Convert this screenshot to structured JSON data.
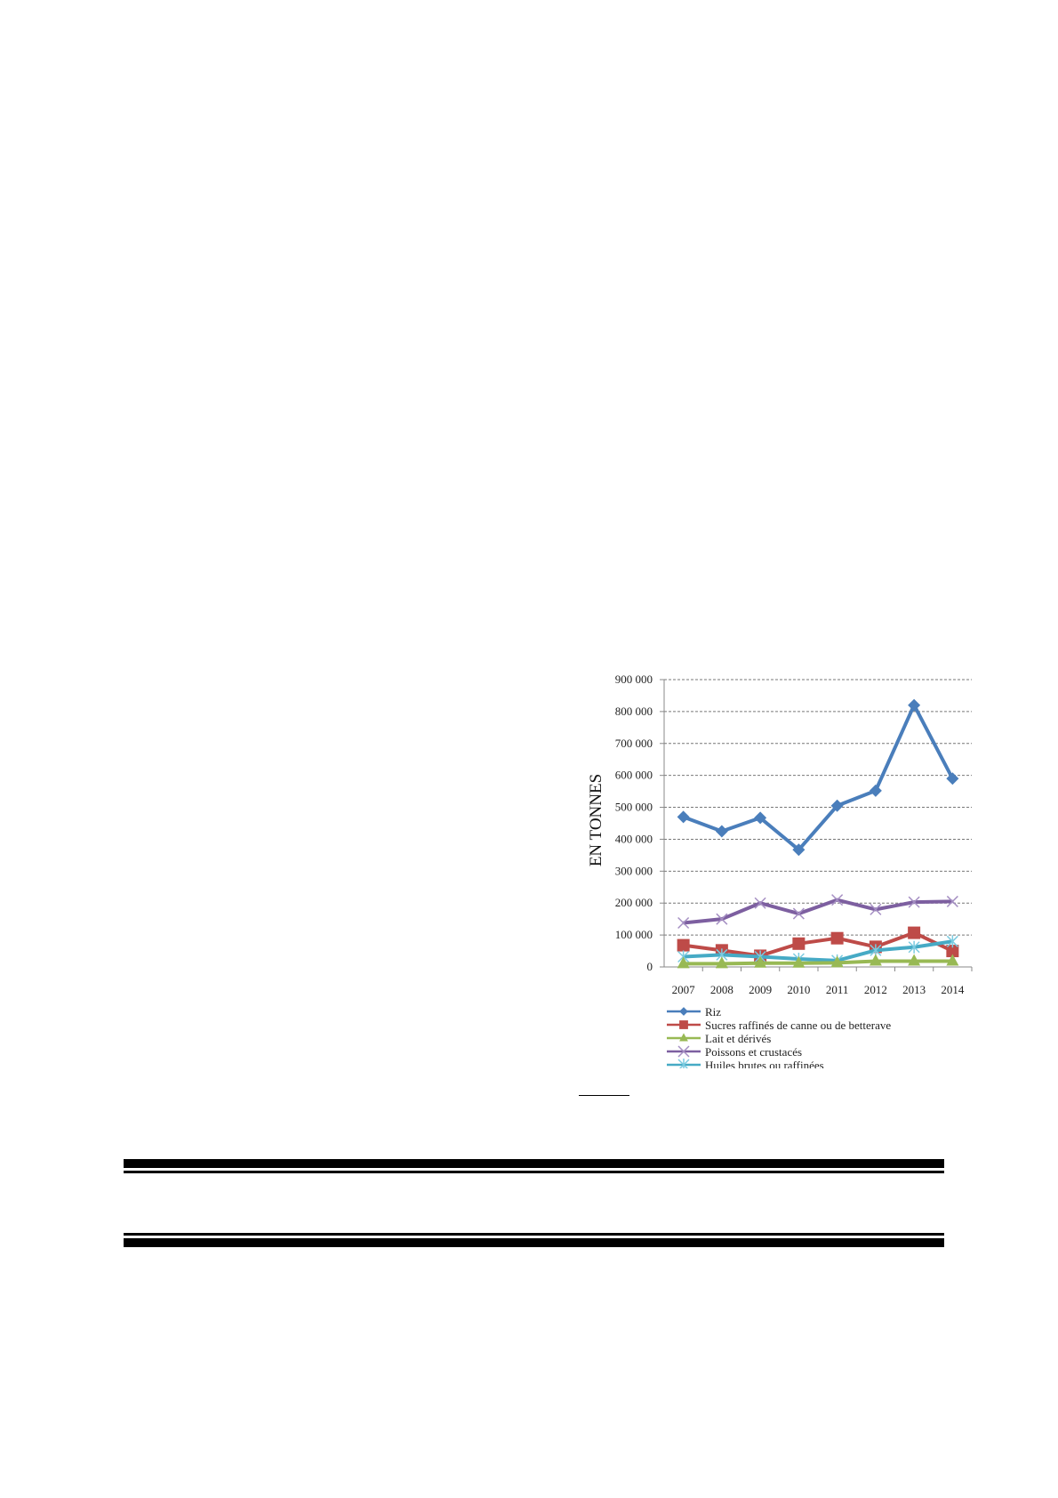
{
  "chart_data": {
    "type": "line",
    "title": "",
    "xlabel": "",
    "ylabel": "EN TONNES",
    "categories": [
      "2007",
      "2008",
      "2009",
      "2010",
      "2011",
      "2012",
      "2013",
      "2014"
    ],
    "ylim": [
      0,
      900000
    ],
    "yticks": [
      0,
      100000,
      200000,
      300000,
      400000,
      500000,
      600000,
      700000,
      800000,
      900000
    ],
    "ytick_labels": [
      "0",
      "100 000",
      "200 000",
      "300 000",
      "400 000",
      "500 000",
      "600 000",
      "700 000",
      "800 000",
      "900 000"
    ],
    "grid": true,
    "legend_position": "bottom",
    "series": [
      {
        "name": "Riz",
        "color": "#4a7ebb",
        "marker": "diamond",
        "values": [
          470000,
          425000,
          467000,
          367000,
          505000,
          552000,
          820000,
          590000
        ]
      },
      {
        "name": "Sucres raffinés de canne ou de betterave",
        "color": "#be4b48",
        "marker": "square",
        "values": [
          68000,
          52000,
          35000,
          73000,
          90000,
          63000,
          107000,
          50000
        ]
      },
      {
        "name": "Lait et dérivés",
        "color": "#98b954",
        "marker": "triangle",
        "values": [
          10000,
          10000,
          12000,
          12000,
          13000,
          18000,
          18000,
          18000
        ]
      },
      {
        "name": "Poissons et crustacés",
        "color": "#7d5fa0",
        "marker": "x",
        "values": [
          138000,
          150000,
          200000,
          167000,
          210000,
          180000,
          203000,
          205000
        ]
      },
      {
        "name": "Huiles brutes ou raffinées",
        "color": "#46aac5",
        "marker": "star",
        "values": [
          32000,
          38000,
          32000,
          25000,
          20000,
          52000,
          62000,
          80000
        ]
      }
    ]
  }
}
